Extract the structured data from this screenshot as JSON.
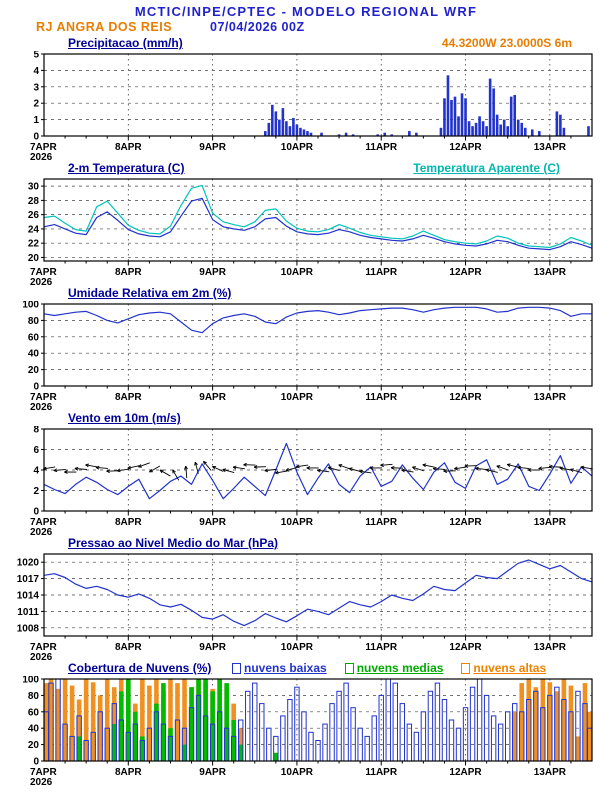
{
  "header": {
    "title": "MCTIC/INPE/CPTEC - MODELO REGIONAL WRF",
    "station": "RJ ANGRA DOS REIS",
    "run_datetime": "07/04/2026 00Z",
    "location": "44.3200W 23.0000S 6m"
  },
  "xaxis": {
    "labels": [
      "7APR",
      "8APR",
      "9APR",
      "10APR",
      "11APR",
      "12APR",
      "13APR"
    ],
    "year": "2026",
    "hours": 156,
    "day_step": 24
  },
  "chart_data": [
    {
      "id": "precipitation",
      "type": "bar",
      "title": "Precipitacao (mm/h)",
      "ylim": [
        0,
        5
      ],
      "yticks": [
        0,
        1,
        2,
        3,
        4,
        5
      ],
      "color": "#2233cc",
      "bars": [
        [
          63,
          0.3
        ],
        [
          64,
          0.8
        ],
        [
          65,
          1.9
        ],
        [
          66,
          1.5
        ],
        [
          67,
          1.0
        ],
        [
          68,
          1.7
        ],
        [
          69,
          0.9
        ],
        [
          70,
          0.6
        ],
        [
          71,
          1.1
        ],
        [
          72,
          0.7
        ],
        [
          73,
          0.5
        ],
        [
          74,
          0.4
        ],
        [
          75,
          0.3
        ],
        [
          76,
          0.2
        ],
        [
          79,
          0.2
        ],
        [
          84,
          0.1
        ],
        [
          86,
          0.2
        ],
        [
          88,
          0.1
        ],
        [
          95,
          0.1
        ],
        [
          97,
          0.2
        ],
        [
          99,
          0.1
        ],
        [
          104,
          0.3
        ],
        [
          106,
          0.2
        ],
        [
          113,
          0.5
        ],
        [
          114,
          2.3
        ],
        [
          115,
          3.7
        ],
        [
          116,
          2.2
        ],
        [
          117,
          2.4
        ],
        [
          118,
          1.2
        ],
        [
          119,
          2.6
        ],
        [
          120,
          2.3
        ],
        [
          121,
          0.9
        ],
        [
          122,
          0.6
        ],
        [
          123,
          0.8
        ],
        [
          124,
          1.2
        ],
        [
          125,
          0.9
        ],
        [
          126,
          0.6
        ],
        [
          127,
          3.5
        ],
        [
          128,
          2.9
        ],
        [
          129,
          1.3
        ],
        [
          130,
          0.7
        ],
        [
          131,
          1.0
        ],
        [
          132,
          0.6
        ],
        [
          133,
          2.4
        ],
        [
          134,
          2.5
        ],
        [
          135,
          1.0
        ],
        [
          136,
          0.8
        ],
        [
          137,
          0.5
        ],
        [
          139,
          0.4
        ],
        [
          141,
          0.3
        ],
        [
          146,
          1.5
        ],
        [
          147,
          1.3
        ],
        [
          148,
          0.5
        ],
        [
          155,
          0.6
        ]
      ]
    },
    {
      "id": "temperature",
      "type": "line",
      "title": "2-m Temperatura (C)",
      "ylim": [
        19.5,
        31
      ],
      "yticks": [
        20,
        22,
        24,
        26,
        28,
        30
      ],
      "step_h": 3,
      "series": [
        {
          "name": "Temperatura Aparente (C)",
          "color": "#00c4bc",
          "values": [
            25.6,
            25.8,
            24.8,
            23.9,
            23.7,
            27.1,
            27.9,
            26.2,
            24.5,
            23.8,
            23.4,
            23.3,
            24.4,
            27.3,
            29.7,
            30.1,
            26.2,
            25.0,
            24.6,
            24.3,
            25.0,
            26.6,
            26.8,
            25.1,
            24.1,
            23.7,
            23.6,
            23.9,
            24.6,
            24.1,
            23.5,
            23.1,
            22.9,
            22.7,
            22.6,
            23.0,
            23.7,
            23.1,
            22.5,
            22.2,
            22.0,
            21.9,
            22.3,
            23.0,
            22.7,
            22.0,
            21.6,
            21.5,
            21.4,
            21.9,
            22.8,
            22.3,
            21.7
          ]
        },
        {
          "name": "2-m Temperatura (C)",
          "color": "#2233cc",
          "values": [
            24.3,
            24.6,
            24.0,
            23.4,
            23.2,
            25.6,
            26.4,
            25.2,
            23.9,
            23.3,
            23.0,
            22.9,
            23.6,
            25.8,
            27.9,
            28.3,
            25.3,
            24.3,
            24.0,
            23.8,
            24.3,
            25.4,
            25.6,
            24.4,
            23.6,
            23.3,
            23.2,
            23.4,
            23.9,
            23.6,
            23.1,
            22.8,
            22.6,
            22.4,
            22.3,
            22.6,
            23.1,
            22.7,
            22.2,
            21.9,
            21.7,
            21.6,
            21.9,
            22.4,
            22.2,
            21.7,
            21.3,
            21.2,
            21.1,
            21.5,
            22.2,
            21.8,
            21.3
          ]
        }
      ]
    },
    {
      "id": "relative-humidity",
      "type": "line",
      "title": "Umidade Relativa em 2m (%)",
      "ylim": [
        0,
        100
      ],
      "yticks": [
        0,
        20,
        40,
        60,
        80,
        100
      ],
      "step_h": 3,
      "series": [
        {
          "name": "Umidade Relativa em 2m (%)",
          "color": "#2233cc",
          "values": [
            88,
            86,
            88,
            90,
            91,
            86,
            80,
            77,
            82,
            87,
            89,
            90,
            88,
            78,
            68,
            65,
            76,
            83,
            86,
            88,
            85,
            78,
            76,
            84,
            89,
            91,
            92,
            90,
            87,
            89,
            92,
            93,
            94,
            95,
            95,
            93,
            90,
            93,
            95,
            96,
            96,
            96,
            94,
            90,
            91,
            95,
            96,
            96,
            95,
            92,
            85,
            88,
            88
          ]
        }
      ]
    },
    {
      "id": "wind-10m",
      "type": "line+barbs",
      "title": "Vento em 10m (m/s)",
      "ylim": [
        0,
        8
      ],
      "yticks": [
        0,
        2,
        4,
        6,
        8
      ],
      "step_h": 3,
      "series": [
        {
          "name": "Vento em 10m (m/s)",
          "color": "#2233cc",
          "values": [
            2.6,
            2.1,
            1.7,
            2.6,
            3.3,
            2.8,
            2.1,
            1.6,
            2.4,
            3.1,
            1.2,
            2.0,
            2.9,
            3.4,
            2.6,
            4.6,
            3.0,
            1.2,
            2.2,
            3.3,
            2.4,
            1.5,
            4.0,
            6.6,
            3.8,
            1.6,
            3.2,
            4.6,
            2.6,
            1.8,
            3.4,
            4.3,
            2.4,
            2.9,
            4.5,
            3.2,
            2.1,
            3.8,
            4.7,
            2.8,
            2.2,
            4.4,
            5.0,
            2.6,
            3.1,
            4.6,
            2.4,
            2.0,
            3.6,
            5.4,
            2.7,
            4.3,
            3.4
          ]
        }
      ],
      "barbs": {
        "step_h": 3,
        "angles": [
          170,
          175,
          180,
          185,
          190,
          185,
          178,
          172,
          168,
          160,
          150,
          210,
          240,
          265,
          255,
          230,
          205,
          195,
          188,
          182,
          178,
          174,
          170,
          165,
          172,
          180,
          188,
          195,
          200,
          195,
          188,
          180,
          175,
          182,
          190,
          198,
          192,
          184,
          178,
          172,
          178,
          186,
          194,
          200,
          194,
          186,
          180,
          174,
          182,
          190,
          196,
          188
        ],
        "y": [
          4.2,
          4.0,
          3.8,
          4.1,
          4.4,
          4.2,
          3.9,
          4.0,
          4.3,
          4.5,
          4.1,
          3.7,
          3.5,
          3.8,
          4.2,
          4.4,
          4.1,
          3.9,
          4.2,
          4.5,
          4.3,
          4.0,
          3.8,
          4.1,
          4.4,
          4.2,
          3.9,
          4.1,
          4.3,
          4.0,
          3.8,
          4.2,
          4.5,
          4.2,
          3.9,
          4.1,
          4.4,
          4.1,
          3.9,
          4.2,
          4.4,
          4.1,
          3.9,
          4.2,
          4.4,
          4.2,
          4.0,
          4.2,
          4.3,
          4.1,
          3.9,
          4.2
        ]
      }
    },
    {
      "id": "sea-level-pressure",
      "type": "line",
      "title": "Pressao ao Nivel Medio do Mar (hPa)",
      "ylim": [
        1006.5,
        1021.5
      ],
      "yticks": [
        1008,
        1011,
        1014,
        1017,
        1020
      ],
      "step_h": 3,
      "series": [
        {
          "name": "Pressao ao Nivel Medio do Mar (hPa)",
          "color": "#2233cc",
          "values": [
            1017.6,
            1017.9,
            1017.2,
            1016.0,
            1015.2,
            1015.6,
            1015.0,
            1014.0,
            1013.6,
            1014.2,
            1013.4,
            1012.2,
            1011.8,
            1012.3,
            1011.2,
            1009.9,
            1009.6,
            1010.4,
            1009.2,
            1008.4,
            1009.3,
            1010.6,
            1009.8,
            1009.1,
            1010.2,
            1011.4,
            1011.0,
            1010.4,
            1011.6,
            1012.8,
            1012.2,
            1011.8,
            1012.8,
            1014.0,
            1013.4,
            1013.0,
            1014.2,
            1015.6,
            1015.0,
            1014.8,
            1016.2,
            1017.6,
            1017.2,
            1017.0,
            1018.4,
            1019.8,
            1020.4,
            1019.6,
            1018.8,
            1019.4,
            1018.2,
            1017.0,
            1016.4
          ]
        }
      ]
    },
    {
      "id": "cloud-cover",
      "type": "bar-multi",
      "title": "Cobertura de Nuvens (%)",
      "ylim": [
        0,
        100
      ],
      "yticks": [
        0,
        20,
        40,
        60,
        80,
        100
      ],
      "step_h": 2,
      "series": [
        {
          "name": "nuvens baixas",
          "color": "#2233cc",
          "style": "outline",
          "values": [
            60,
            95,
            100,
            45,
            30,
            55,
            25,
            35,
            60,
            40,
            70,
            50,
            35,
            45,
            25,
            40,
            60,
            45,
            30,
            50,
            40,
            65,
            80,
            55,
            45,
            60,
            40,
            30,
            50,
            85,
            95,
            70,
            40,
            30,
            55,
            75,
            90,
            60,
            35,
            25,
            45,
            70,
            85,
            95,
            65,
            40,
            30,
            55,
            80,
            100,
            95,
            70,
            45,
            35,
            60,
            85,
            95,
            75,
            50,
            40,
            65,
            90,
            100,
            80,
            55,
            45,
            60,
            70,
            60,
            75,
            85,
            65,
            80,
            90,
            75,
            60,
            85,
            70,
            40
          ]
        },
        {
          "name": "nuvens medias",
          "color": "#00bb00",
          "style": "fill",
          "values": [
            0,
            0,
            0,
            0,
            0,
            30,
            0,
            0,
            0,
            0,
            45,
            85,
            100,
            60,
            30,
            0,
            70,
            95,
            40,
            0,
            20,
            90,
            100,
            100,
            85,
            100,
            95,
            50,
            20,
            0,
            0,
            0,
            0,
            10,
            0,
            0,
            0,
            0,
            0,
            0,
            0,
            0,
            0,
            0,
            0,
            0,
            0,
            0,
            0,
            0,
            0,
            0,
            0,
            0,
            0,
            0,
            0,
            0,
            0,
            0,
            0,
            0,
            0,
            0,
            0,
            0,
            0,
            0,
            0,
            0,
            0,
            0,
            0,
            0,
            0,
            0,
            0,
            0,
            0
          ]
        },
        {
          "name": "nuvens altas",
          "color": "#f09020",
          "style": "fill",
          "values": [
            95,
            100,
            88,
            100,
            92,
            75,
            100,
            96,
            80,
            100,
            90,
            100,
            95,
            70,
            100,
            92,
            100,
            85,
            100,
            95,
            100,
            90,
            100,
            96,
            88,
            100,
            92,
            70,
            40,
            0,
            0,
            0,
            0,
            0,
            0,
            0,
            0,
            0,
            0,
            0,
            0,
            0,
            0,
            0,
            0,
            0,
            0,
            0,
            0,
            0,
            0,
            0,
            0,
            0,
            0,
            0,
            0,
            0,
            0,
            0,
            0,
            0,
            0,
            0,
            0,
            0,
            0,
            60,
            95,
            100,
            90,
            100,
            96,
            85,
            100,
            92,
            30,
            95,
            60
          ]
        }
      ]
    }
  ]
}
